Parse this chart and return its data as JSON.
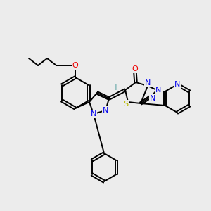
{
  "background_color": "#ececec",
  "atom_colors": {
    "C": "#000000",
    "N": "#0000ee",
    "O": "#ee0000",
    "S": "#bbbb00",
    "H": "#4a9a9a"
  },
  "figsize": [
    3.0,
    3.0
  ],
  "dpi": 100,
  "bond_lw": 1.4,
  "font_size": 8.0,
  "font_size_small": 7.0
}
